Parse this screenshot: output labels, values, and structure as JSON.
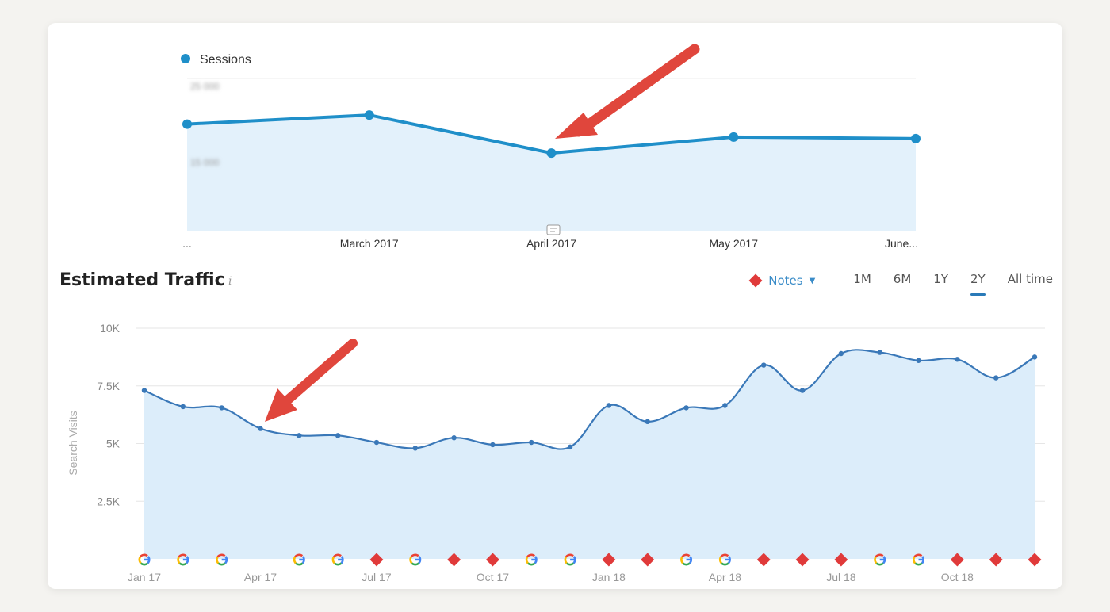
{
  "chart_data": [
    {
      "type": "line",
      "legend": [
        {
          "name": "Sessions",
          "color": "#1f8fc9"
        }
      ],
      "categories": [
        "...",
        "March 2017",
        "April 2017",
        "May 2017",
        "June..."
      ],
      "y_tick_labels": [
        "25 000",
        "15 000"
      ],
      "series": [
        {
          "name": "Sessions",
          "values": [
            19000,
            20200,
            15200,
            17300,
            17100
          ]
        }
      ],
      "ylim": [
        5000,
        25000
      ],
      "grid": true,
      "area_fill": "#e3f1fb",
      "line_color": "#1f8fc9"
    },
    {
      "type": "area",
      "title": "Estimated Traffic",
      "info_icon": "i",
      "ylabel": "Search Visits",
      "y_ticks": [
        {
          "value": 2500,
          "label": "2.5K"
        },
        {
          "value": 5000,
          "label": "5K"
        },
        {
          "value": 7500,
          "label": "7.5K"
        },
        {
          "value": 10000,
          "label": "10K"
        }
      ],
      "ylim": [
        0,
        10000
      ],
      "x_tick_labels": [
        {
          "index": 0,
          "label": "Jan 17"
        },
        {
          "index": 3,
          "label": "Apr 17"
        },
        {
          "index": 6,
          "label": "Jul 17"
        },
        {
          "index": 9,
          "label": "Oct 17"
        },
        {
          "index": 12,
          "label": "Jan 18"
        },
        {
          "index": 15,
          "label": "Apr 18"
        },
        {
          "index": 18,
          "label": "Jul 18"
        },
        {
          "index": 21,
          "label": "Oct 18"
        }
      ],
      "series": [
        {
          "values": [
            7300,
            6600,
            6550,
            5650,
            5350,
            5350,
            5050,
            4800,
            5250,
            4950,
            5050,
            4850,
            6650,
            5950,
            6550,
            6650,
            8400,
            7300,
            8900,
            8950,
            8600,
            8650,
            7850,
            8750
          ]
        }
      ],
      "markers": [
        "google",
        "google",
        "google",
        "none",
        "google",
        "google",
        "note",
        "google",
        "note",
        "note",
        "google",
        "google",
        "note",
        "note",
        "google",
        "google",
        "note",
        "note",
        "note",
        "google",
        "google",
        "note",
        "note",
        "note"
      ],
      "area_fill": "#dcedfa",
      "line_color": "#3a78b8",
      "grid": true
    }
  ],
  "controls": {
    "notes_label": "Notes",
    "ranges": [
      "1M",
      "6M",
      "1Y",
      "2Y",
      "All time"
    ],
    "active_range": "2Y"
  },
  "colors": {
    "note_marker": "#e03a3a",
    "arrow": "#e0463c",
    "active_underline": "#2a7ab8"
  }
}
